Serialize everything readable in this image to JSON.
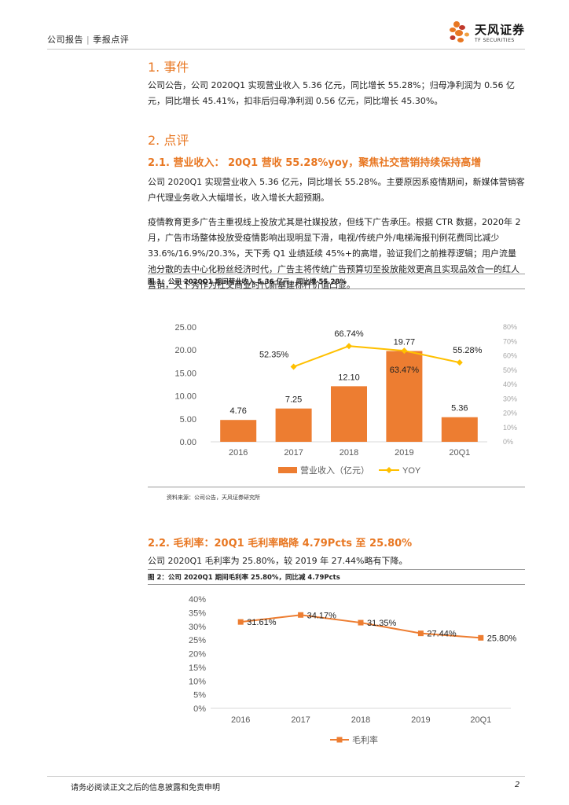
{
  "header": {
    "category": "公司报告",
    "subcategory": "季报点评",
    "logo_cn": "天风证券",
    "logo_en": "TF SECURITIES"
  },
  "section1": {
    "title": "1. 事件",
    "body": "公司公告，公司 2020Q1 实现营业收入 5.36 亿元，同比增长 55.28%；归母净利润为 0.56 亿元，同比增长 45.41%，扣非后归母净利润 0.56 亿元，同比增长 45.30%。"
  },
  "section2": {
    "title": "2. 点评",
    "sub1_title": "2.1. 营业收入： 20Q1 营收 55.28%yoy，聚焦社交营销持续保持高增",
    "sub1_p1": "公司 2020Q1 实现营业收入 5.36 亿元，同比增长 55.28%。主要原因系疫情期间，新媒体营销客户代理业务收入大幅增长，收入增长大超预期。",
    "sub1_p2": "疫情教育更多广告主重视线上投放尤其是社媒投放，但线下广告承压。根据 CTR 数据，2020年 2 月，广告市场整体投放受疫情影响出现明显下滑，电视/传统户外/电梯海报刊例花费同比减少 33.6%/16.9%/20.3%，天下秀 Q1 业绩延续 45%+的高增，验证我们之前推荐逻辑；用户流量池分散的去中心化粉丝经济时代，广告主将传统广告预算切至投放能效更高且实现品效合一的红人营销，天下秀作为社交商业时代新基建标杆价值凸显。",
    "sub2_title": "2.2. 毛利率：20Q1 毛利率略降 4.79Pcts 至 25.80%",
    "sub2_p1": "公司 2020Q1 毛利率为 25.80%，较 2019 年 27.44%略有下降。"
  },
  "figure1": {
    "title": "图 1：公司 2020Q1 期间营业收入 5.36 亿元，同比增 55.28%",
    "source": "资料来源：公司公告，天风证券研究所",
    "legend_bar": "营业收入（亿元）",
    "legend_line": "YOY"
  },
  "figure2": {
    "title": "图 2：公司 2020Q1 期间毛利率 25.80%，同比减 4.79Pcts",
    "legend": "毛利率"
  },
  "chart_data": [
    {
      "type": "bar",
      "categories": [
        "2016",
        "2017",
        "2018",
        "2019",
        "20Q1"
      ],
      "series": [
        {
          "name": "营业收入（亿元）",
          "type": "bar",
          "axis": "left",
          "values": [
            4.76,
            7.25,
            12.1,
            19.77,
            5.36
          ],
          "labels": [
            "4.76",
            "7.25",
            "12.10",
            "19.77",
            "5.36"
          ]
        },
        {
          "name": "YOY",
          "type": "line",
          "axis": "right",
          "values": [
            null,
            52.35,
            66.74,
            63.47,
            55.28
          ],
          "labels": [
            "",
            "52.35%",
            "66.74%",
            "63.47%",
            "55.28%"
          ]
        }
      ],
      "ylim": [
        0,
        25
      ],
      "y_ticks": [
        "0.00",
        "5.00",
        "10.00",
        "15.00",
        "20.00",
        "25.00"
      ],
      "y2lim": [
        0,
        80
      ],
      "y2_ticks": [
        "0%",
        "10%",
        "20%",
        "30%",
        "40%",
        "50%",
        "60%",
        "70%",
        "80%"
      ],
      "legend": "bottom",
      "colors": {
        "bar": "#ed7d31",
        "line": "#ffc000"
      }
    },
    {
      "type": "line",
      "categories": [
        "2016",
        "2017",
        "2018",
        "2019",
        "20Q1"
      ],
      "series": [
        {
          "name": "毛利率",
          "values": [
            31.61,
            34.17,
            31.35,
            27.44,
            25.8
          ],
          "labels": [
            "31.61%",
            "34.17%",
            "31.35%",
            "27.44%",
            "25.80%"
          ]
        }
      ],
      "ylim": [
        0,
        40
      ],
      "y_ticks": [
        "0%",
        "5%",
        "10%",
        "15%",
        "20%",
        "25%",
        "30%",
        "35%",
        "40%"
      ],
      "legend": "bottom",
      "colors": {
        "line": "#ed7d31"
      }
    }
  ],
  "footer": {
    "disclaimer": "请务必阅读正文之后的信息披露和免责申明",
    "page": "2"
  }
}
